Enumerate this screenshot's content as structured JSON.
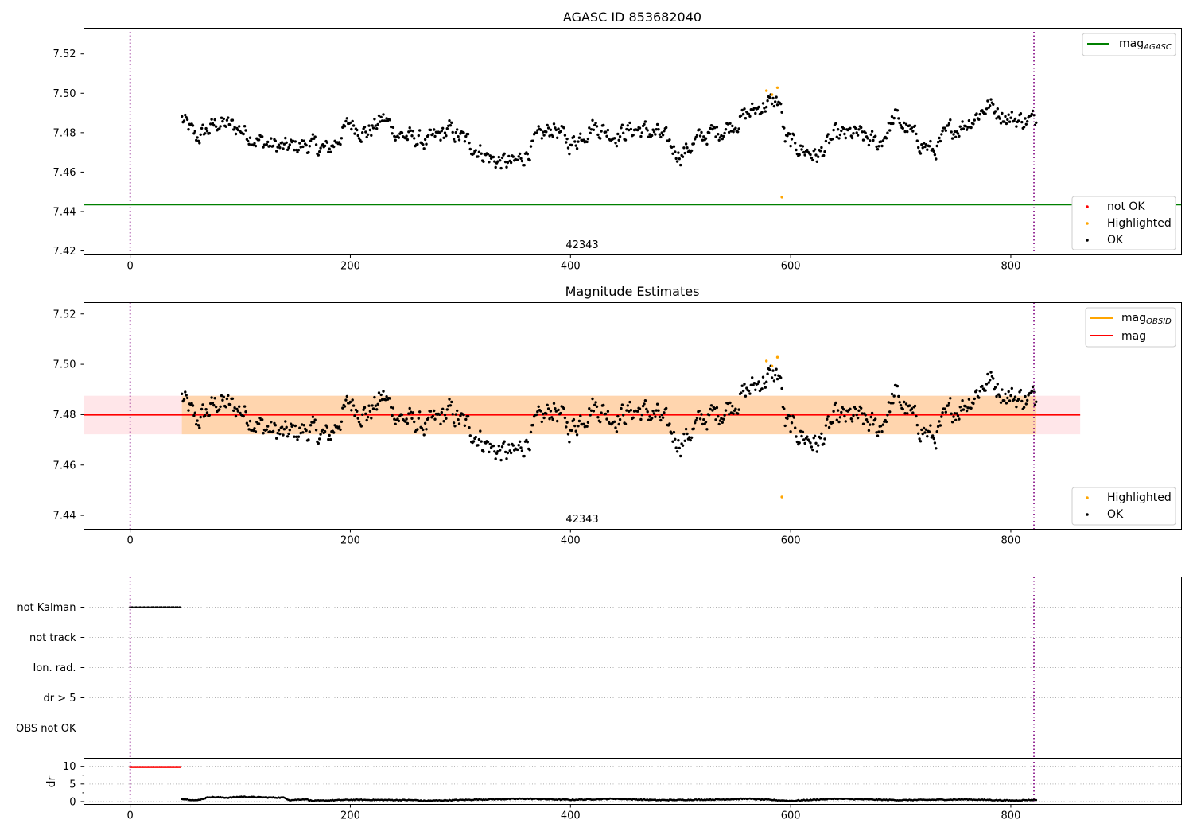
{
  "chart_data": [
    {
      "type": "scatter",
      "title": "AGASC ID 853682040",
      "xlim": [
        -42,
        955
      ],
      "ylim": [
        7.418,
        7.533
      ],
      "xticks": [
        "0",
        "200",
        "400",
        "600",
        "800"
      ],
      "yticks": [
        "7.42",
        "7.44",
        "7.46",
        "7.48",
        "7.50",
        "7.52"
      ],
      "obsid_label": "42343",
      "vlines_x": [
        0,
        821
      ],
      "hline": {
        "name": "mag_AGASC",
        "y": 7.4435,
        "color": "#008000"
      },
      "legend_top": [
        {
          "label": "mag",
          "sub": "AGASC",
          "color": "#008000",
          "kind": "line"
        }
      ],
      "legend_bottom": [
        {
          "label": "not OK",
          "color": "#ff0000",
          "kind": "dot"
        },
        {
          "label": "Highlighted",
          "color": "#ffa500",
          "kind": "dot"
        },
        {
          "label": "OK",
          "color": "#000000",
          "kind": "dot"
        }
      ],
      "series": [
        {
          "name": "OK",
          "color": "#000000",
          "x_start": 47,
          "x_end": 823,
          "trend": [
            [
              47,
              7.487
            ],
            [
              60,
              7.477
            ],
            [
              80,
              7.485
            ],
            [
              100,
              7.482
            ],
            [
              120,
              7.475
            ],
            [
              140,
              7.472
            ],
            [
              160,
              7.474
            ],
            [
              180,
              7.471
            ],
            [
              200,
              7.485
            ],
            [
              215,
              7.48
            ],
            [
              230,
              7.487
            ],
            [
              245,
              7.479
            ],
            [
              270,
              7.475
            ],
            [
              290,
              7.481
            ],
            [
              310,
              7.474
            ],
            [
              330,
              7.466
            ],
            [
              350,
              7.464
            ],
            [
              370,
              7.476
            ],
            [
              385,
              7.483
            ],
            [
              400,
              7.474
            ],
            [
              420,
              7.484
            ],
            [
              440,
              7.479
            ],
            [
              460,
              7.482
            ],
            [
              480,
              7.479
            ],
            [
              500,
              7.469
            ],
            [
              520,
              7.478
            ],
            [
              540,
              7.482
            ],
            [
              560,
              7.489
            ],
            [
              575,
              7.494
            ],
            [
              590,
              7.496
            ],
            [
              595,
              7.476
            ],
            [
              610,
              7.472
            ],
            [
              625,
              7.468
            ],
            [
              640,
              7.478
            ],
            [
              660,
              7.479
            ],
            [
              680,
              7.474
            ],
            [
              695,
              7.488
            ],
            [
              710,
              7.479
            ],
            [
              730,
              7.47
            ],
            [
              745,
              7.481
            ],
            [
              760,
              7.485
            ],
            [
              780,
              7.494
            ],
            [
              800,
              7.487
            ],
            [
              823,
              7.486
            ]
          ]
        },
        {
          "name": "Highlighted",
          "color": "#ffa500",
          "points": [
            [
              578,
              7.5013
            ],
            [
              583,
              7.4993
            ],
            [
              588,
              7.5028
            ],
            [
              592,
              7.4473
            ]
          ]
        }
      ]
    },
    {
      "type": "scatter",
      "title": "Magnitude Estimates",
      "xlim": [
        -42,
        955
      ],
      "ylim": [
        7.4345,
        7.5245
      ],
      "xticks": [
        "0",
        "200",
        "400",
        "600",
        "800"
      ],
      "yticks": [
        "7.44",
        "7.46",
        "7.48",
        "7.50",
        "7.52"
      ],
      "obsid_label": "42343",
      "vlines_x": [
        0,
        821
      ],
      "mag": {
        "y": 7.4799,
        "x_end": 863,
        "color": "#ff0000"
      },
      "mag_obsid_band": {
        "y_lo": 7.4722,
        "y_hi": 7.4875,
        "x_start": 47,
        "x_end": 823
      },
      "mag_band": {
        "y_lo": 7.4722,
        "y_hi": 7.4875,
        "x_start": -42,
        "x_end": 863
      },
      "legend_top": [
        {
          "label": "mag",
          "sub": "OBSID",
          "color": "#ffa500",
          "kind": "line"
        },
        {
          "label": "mag",
          "sub": "",
          "color": "#ff0000",
          "kind": "line"
        }
      ],
      "legend_bottom": [
        {
          "label": "Highlighted",
          "color": "#ffa500",
          "kind": "dot"
        },
        {
          "label": "OK",
          "color": "#000000",
          "kind": "dot"
        }
      ]
    },
    {
      "type": "scatter",
      "title": "",
      "xlim": [
        -42,
        955
      ],
      "xticks": [
        "0",
        "200",
        "400",
        "600",
        "800"
      ],
      "vlines_x": [
        0,
        821
      ],
      "flag_rows": [
        "not Kalman",
        "not track",
        "Ion. rad.",
        "dr > 5",
        "OBS not OK"
      ],
      "flag_points": [
        {
          "row": "not Kalman",
          "x_start": 0,
          "x_end": 46
        }
      ],
      "dr_panel": {
        "ylabel": "dr",
        "yticks": [
          "0",
          "5",
          "10"
        ],
        "ylim": [
          -0.8,
          12.3
        ],
        "not_kalman_value": 9.8,
        "not_kalman_x": [
          0,
          46
        ],
        "segments": [
          [
            47,
            0.8
          ],
          [
            55,
            0.5
          ],
          [
            60,
            0.3
          ],
          [
            72,
            1.3
          ],
          [
            90,
            1.1
          ],
          [
            100,
            1.4
          ],
          [
            120,
            1.2
          ],
          [
            140,
            1.1
          ],
          [
            145,
            0.4
          ],
          [
            160,
            0.7
          ],
          [
            165,
            0.2
          ],
          [
            200,
            0.5
          ],
          [
            260,
            0.4
          ],
          [
            265,
            0.2
          ],
          [
            320,
            0.6
          ],
          [
            360,
            0.8
          ],
          [
            400,
            0.5
          ],
          [
            440,
            0.8
          ],
          [
            480,
            0.4
          ],
          [
            540,
            0.6
          ],
          [
            560,
            0.8
          ],
          [
            600,
            0.2
          ],
          [
            640,
            0.8
          ],
          [
            700,
            0.4
          ],
          [
            760,
            0.6
          ],
          [
            800,
            0.3
          ],
          [
            823,
            0.5
          ]
        ]
      }
    }
  ]
}
